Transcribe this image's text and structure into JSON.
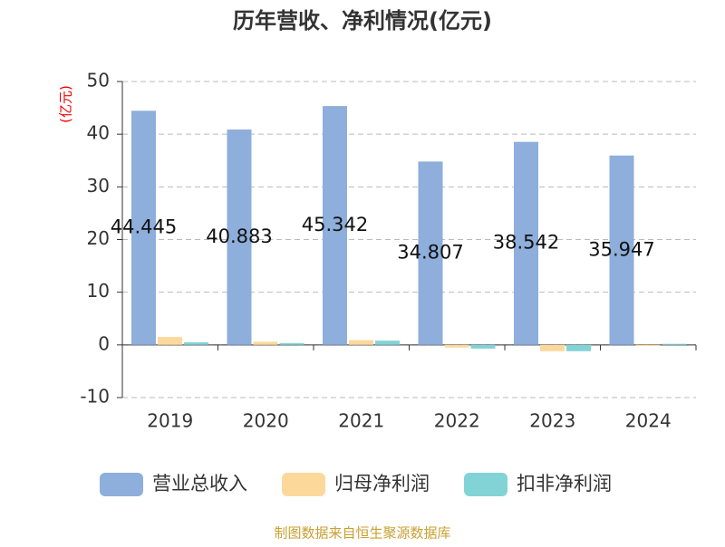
{
  "chart_data": {
    "type": "bar",
    "title": "历年营收、净利情况(亿元)",
    "y_unit": "(亿元)",
    "source": "制图数据来自恒生聚源数据库",
    "categories": [
      "2019",
      "2020",
      "2021",
      "2022",
      "2023",
      "2024"
    ],
    "series": [
      {
        "name": "营业总收入",
        "color": "#8eaedb",
        "values": [
          44.445,
          40.883,
          45.342,
          34.807,
          38.542,
          35.947
        ],
        "show_labels": true
      },
      {
        "name": "归母净利润",
        "color": "#fdd89b",
        "values": [
          1.5,
          0.6,
          0.9,
          -0.5,
          -1.2,
          -0.2
        ],
        "show_labels": false
      },
      {
        "name": "扣非净利润",
        "color": "#82d3d6",
        "values": [
          0.5,
          0.35,
          0.8,
          -0.7,
          -1.2,
          0.2
        ],
        "show_labels": false
      }
    ],
    "ylim": [
      -10,
      50
    ],
    "yticks": [
      -10,
      0,
      10,
      20,
      30,
      40,
      50
    ],
    "grid": true
  }
}
